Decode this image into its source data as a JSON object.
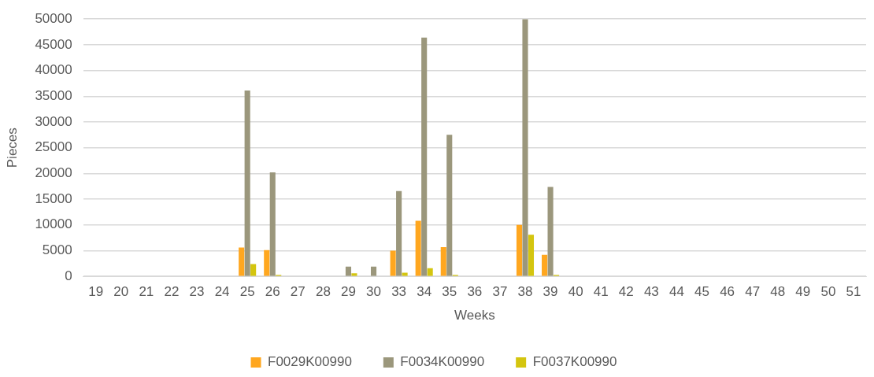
{
  "chart_data": {
    "type": "bar",
    "xlabel": "Weeks",
    "ylabel": "Pieces",
    "categories": [
      "19",
      "20",
      "21",
      "22",
      "23",
      "24",
      "25",
      "26",
      "27",
      "28",
      "29",
      "30",
      "33",
      "34",
      "35",
      "36",
      "37",
      "38",
      "39",
      "40",
      "41",
      "42",
      "43",
      "44",
      "45",
      "46",
      "47",
      "48",
      "49",
      "50",
      "51"
    ],
    "series": [
      {
        "name": "F0029K00990",
        "color": "#ffa71f",
        "values": [
          null,
          null,
          null,
          null,
          null,
          null,
          5600,
          5100,
          null,
          null,
          null,
          null,
          5000,
          10800,
          5700,
          null,
          null,
          10000,
          4200,
          null,
          null,
          null,
          null,
          null,
          null,
          null,
          null,
          null,
          null,
          null,
          null
        ]
      },
      {
        "name": "F0034K00990",
        "color": "#9b977c",
        "values": [
          null,
          null,
          null,
          null,
          null,
          null,
          36100,
          20200,
          null,
          null,
          1900,
          1900,
          16600,
          46400,
          27500,
          null,
          null,
          50000,
          17400,
          null,
          null,
          null,
          null,
          null,
          null,
          null,
          null,
          null,
          null,
          null,
          null
        ]
      },
      {
        "name": "F0037K00990",
        "color": "#d4c50f",
        "values": [
          null,
          null,
          null,
          null,
          null,
          null,
          2400,
          300,
          null,
          null,
          600,
          null,
          700,
          1600,
          300,
          null,
          null,
          8100,
          300,
          null,
          null,
          null,
          null,
          null,
          null,
          null,
          null,
          null,
          null,
          null,
          null
        ]
      }
    ],
    "ylim": [
      0,
      50000
    ],
    "yticks": [
      0,
      5000,
      10000,
      15000,
      20000,
      25000,
      30000,
      35000,
      40000,
      45000,
      50000
    ],
    "grid": "y",
    "legend": "bottom"
  }
}
